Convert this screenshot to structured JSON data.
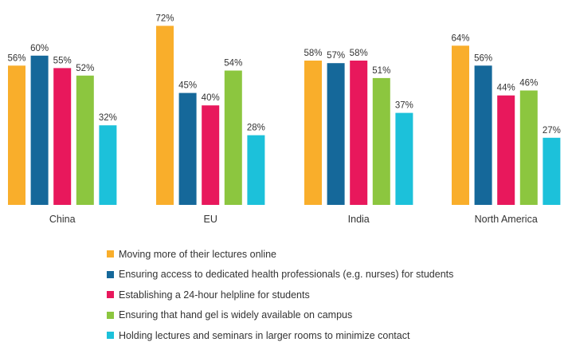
{
  "chart_data": {
    "type": "bar",
    "title": "",
    "xlabel": "",
    "ylabel": "",
    "ylim": [
      0,
      100
    ],
    "grid": false,
    "legend_position": "bottom",
    "categories": [
      "China",
      "EU",
      "India",
      "North America"
    ],
    "series": [
      {
        "name": "Moving more of their lectures online",
        "color": "#F9AE2B",
        "values": [
          56,
          72,
          58,
          64
        ],
        "labels": [
          "56%",
          "72%",
          "58%",
          "64%"
        ]
      },
      {
        "name": "Ensuring access to dedicated health professionals (e.g. nurses) for students",
        "color": "#15689A",
        "values": [
          60,
          45,
          57,
          56
        ],
        "labels": [
          "60%",
          "45%",
          "57%",
          "56%"
        ]
      },
      {
        "name": "Establishing a 24-hour helpline for students",
        "color": "#E8185C",
        "values": [
          55,
          40,
          58,
          44
        ],
        "labels": [
          "55%",
          "40%",
          "58%",
          "44%"
        ]
      },
      {
        "name": "Ensuring that hand gel is widely available on campus",
        "color": "#8CC63F",
        "values": [
          52,
          54,
          51,
          46
        ],
        "labels": [
          "52%",
          "54%",
          "51%",
          "46%"
        ]
      },
      {
        "name": "Holding lectures and seminars in larger rooms to minimize contact",
        "color": "#1CC1DA",
        "values": [
          32,
          28,
          37,
          27
        ],
        "labels": [
          "32%",
          "28%",
          "37%",
          "27%"
        ]
      }
    ]
  }
}
